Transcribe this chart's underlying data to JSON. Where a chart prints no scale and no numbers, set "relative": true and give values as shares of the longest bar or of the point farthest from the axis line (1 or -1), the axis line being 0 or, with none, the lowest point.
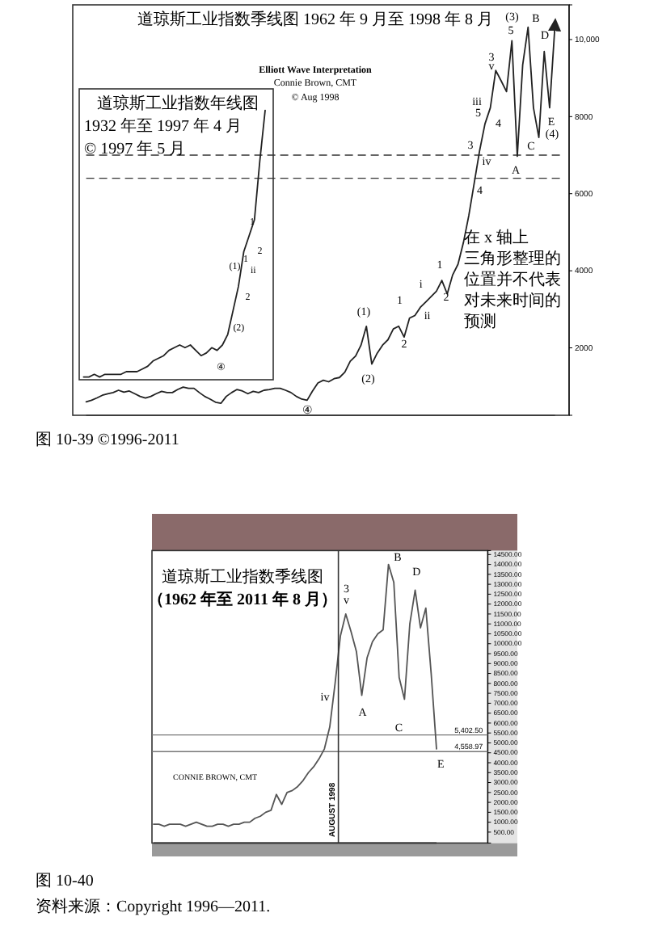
{
  "chart_data": [
    {
      "type": "line",
      "title": "道琼斯工业指数季线图 1962 年 9 月至 1998 年 8 月",
      "tick_labels": "y",
      "categories": [
        null,
        null,
        null,
        null,
        null,
        null,
        null,
        null,
        null,
        null,
        null,
        null,
        null,
        null,
        null,
        null,
        null,
        null,
        null,
        null,
        null,
        null,
        null,
        null,
        null,
        null,
        null,
        null,
        null,
        null,
        null,
        null,
        null,
        null,
        null,
        null,
        null,
        null,
        null,
        null,
        null,
        null,
        null,
        null,
        null,
        null,
        null,
        null,
        null,
        null,
        null,
        null,
        null,
        null,
        null,
        null,
        null,
        null,
        null,
        null,
        null,
        null,
        null,
        null,
        null,
        null,
        null,
        null,
        null,
        null,
        null,
        null,
        null,
        null,
        null,
        null,
        null,
        null,
        null,
        null,
        null,
        null,
        null,
        null,
        null,
        null,
        null,
        null
      ],
      "ylim": [
        250,
        10900
      ],
      "yticks": [
        2000,
        4000,
        6000,
        8000,
        {
          "value": 10000,
          "label": "10,000"
        }
      ],
      "series": [
        {
          "color": "#222222",
          "values": [
            600,
            640,
            700,
            770,
            810,
            840,
            900,
            850,
            880,
            810,
            740,
            700,
            740,
            810,
            870,
            840,
            840,
            920,
            980,
            950,
            950,
            840,
            740,
            670,
            590,
            560,
            740,
            840,
            920,
            880,
            810,
            870,
            840,
            900,
            920,
            950,
            950,
            900,
            840,
            740,
            670,
            640,
            880,
            1090,
            1160,
            1120,
            1200,
            1230,
            1370,
            1650,
            1790,
            2070,
            2560,
            1580,
            1860,
            2070,
            2210,
            2490,
            2560,
            2280,
            2770,
            2840,
            3050,
            3190,
            3330,
            3470,
            3750,
            3400,
            3890,
            4170,
            4730,
            5430,
            6270,
            7110,
            7810,
            8230,
            9200,
            8930,
            8650,
            9970,
            6970,
            9340,
            10320,
            8230,
            7460,
            9690,
            8230,
            10390
          ]
        }
      ],
      "ref_lines": [
        {
          "axis": "y",
          "value": 7000,
          "line_style": "dashed"
        },
        {
          "axis": "y",
          "value": 6400,
          "line_style": "dashed"
        }
      ],
      "annotations": [
        "Elliott Wave Interpretation",
        "Connie Brown, CMT",
        "© Aug 1998",
        "在 x 轴上三角形整理的位置并不代表对未来时间的预测",
        "图 10-39 ©1996-2011",
        "(3)",
        "5",
        "B",
        "D",
        "E",
        "(4)",
        "C",
        "A",
        "iii",
        "5",
        "3",
        "v",
        "4",
        "3",
        "iv",
        "4",
        "1",
        "2",
        "i",
        "ii",
        "1",
        "2",
        "(1)",
        "(2)",
        "④"
      ]
    },
    {
      "type": "line",
      "title": "道琼斯工业指数年线图",
      "relative": true,
      "tick_labels": false,
      "categories": [
        null,
        null,
        null,
        null,
        null,
        null,
        null,
        null,
        null,
        null,
        null,
        null,
        null,
        null,
        null,
        null,
        null,
        null,
        null,
        null,
        null,
        null,
        null,
        null,
        null,
        null,
        null,
        null,
        null,
        null,
        null,
        null,
        null,
        null,
        null
      ],
      "series": [
        {
          "color": "#222222",
          "values": [
            0,
            0,
            0.01,
            0,
            0.01,
            0.01,
            0.01,
            0.01,
            0.02,
            0.02,
            0.02,
            0.03,
            0.04,
            0.06,
            0.07,
            0.08,
            0.1,
            0.11,
            0.12,
            0.11,
            0.12,
            0.1,
            0.08,
            0.09,
            0.11,
            0.1,
            0.12,
            0.16,
            0.25,
            0.34,
            0.47,
            0.53,
            0.59,
            0.81,
            1
          ]
        }
      ],
      "annotations": [
        "1932 年至 1997 年 4 月",
        "© 1997 年 5 月",
        "(1)",
        "(2)",
        "1",
        "2",
        "ii",
        "1",
        "2",
        "④"
      ]
    },
    {
      "type": "line",
      "title": "道琼斯工业指数季线图",
      "subtitle": "（1962 年至 2011 年 8 月）",
      "tick_labels": "y",
      "categories": [
        null,
        null,
        null,
        null,
        null,
        null,
        null,
        null,
        null,
        null,
        null,
        null,
        null,
        null,
        null,
        null,
        null,
        null,
        null,
        null,
        null,
        null,
        null,
        null,
        null,
        null,
        null,
        null,
        null,
        null,
        null,
        null,
        null,
        null,
        null,
        null,
        null,
        null,
        null,
        null,
        null,
        null,
        null,
        null,
        null,
        null,
        null,
        null,
        null,
        null,
        null,
        null,
        null,
        null
      ],
      "ylim": [
        -50,
        14700
      ],
      "yticks": [
        {
          "value": 500,
          "label": "500.00"
        },
        {
          "value": 1000,
          "label": "1000.00"
        },
        {
          "value": 1500,
          "label": "1500.00"
        },
        {
          "value": 2000,
          "label": "2000.00"
        },
        {
          "value": 2500,
          "label": "2500.00"
        },
        {
          "value": 3000,
          "label": "3000.00"
        },
        {
          "value": 3500,
          "label": "3500.00"
        },
        {
          "value": 4000,
          "label": "4000.00"
        },
        {
          "value": 4500,
          "label": "4500.00"
        },
        {
          "value": 5000,
          "label": "5000.00"
        },
        {
          "value": 5500,
          "label": "5500.00"
        },
        {
          "value": 6000,
          "label": "6000.00"
        },
        {
          "value": 6500,
          "label": "6500.00"
        },
        {
          "value": 7000,
          "label": "7000.00"
        },
        {
          "value": 7500,
          "label": "7500.00"
        },
        {
          "value": 8000,
          "label": "8000.00"
        },
        {
          "value": 8500,
          "label": "8500.00"
        },
        {
          "value": 9000,
          "label": "9000.00"
        },
        {
          "value": 9500,
          "label": "9500.00"
        },
        {
          "value": 10000,
          "label": "10000.00"
        },
        {
          "value": 10500,
          "label": "10500.00"
        },
        {
          "value": 11000,
          "label": "11000.00"
        },
        {
          "value": 11500,
          "label": "11500.00"
        },
        {
          "value": 12000,
          "label": "12000.00"
        },
        {
          "value": 12500,
          "label": "12500.00"
        },
        {
          "value": 13000,
          "label": "13000.00"
        },
        {
          "value": 13500,
          "label": "13500.00"
        },
        {
          "value": 14000,
          "label": "14000.00"
        },
        {
          "value": 14500,
          "label": "14500.00"
        }
      ],
      "series": [
        {
          "color": "#555555",
          "values": [
            900,
            900,
            800,
            900,
            900,
            900,
            800,
            900,
            1000,
            900,
            800,
            800,
            900,
            900,
            800,
            900,
            900,
            1000,
            1000,
            1200,
            1300,
            1500,
            1600,
            2400,
            1900,
            2500,
            2600,
            2800,
            3100,
            3500,
            3800,
            4200,
            4700,
            5800,
            8000,
            10400,
            11500,
            10600,
            9600,
            7400,
            9300,
            10100,
            10500,
            10700,
            14000,
            13100,
            8300,
            7200,
            11000,
            12700,
            10800,
            11800,
            8500,
            4700
          ]
        }
      ],
      "ref_lines": [
        {
          "axis": "y",
          "value": 5402.5,
          "label": "5,402.50",
          "color": "#777777"
        },
        {
          "axis": "y",
          "value": 4558.97,
          "label": "4,558.97",
          "color": "#777777"
        }
      ],
      "annotations": [
        "CONNIE BROWN, CMT",
        "图 10-40",
        "资料来源：Copyright 1996—2011.",
        "AUGUST 1998",
        "B",
        "D",
        "3",
        "v",
        "iv",
        "A",
        "C",
        "E"
      ]
    }
  ]
}
